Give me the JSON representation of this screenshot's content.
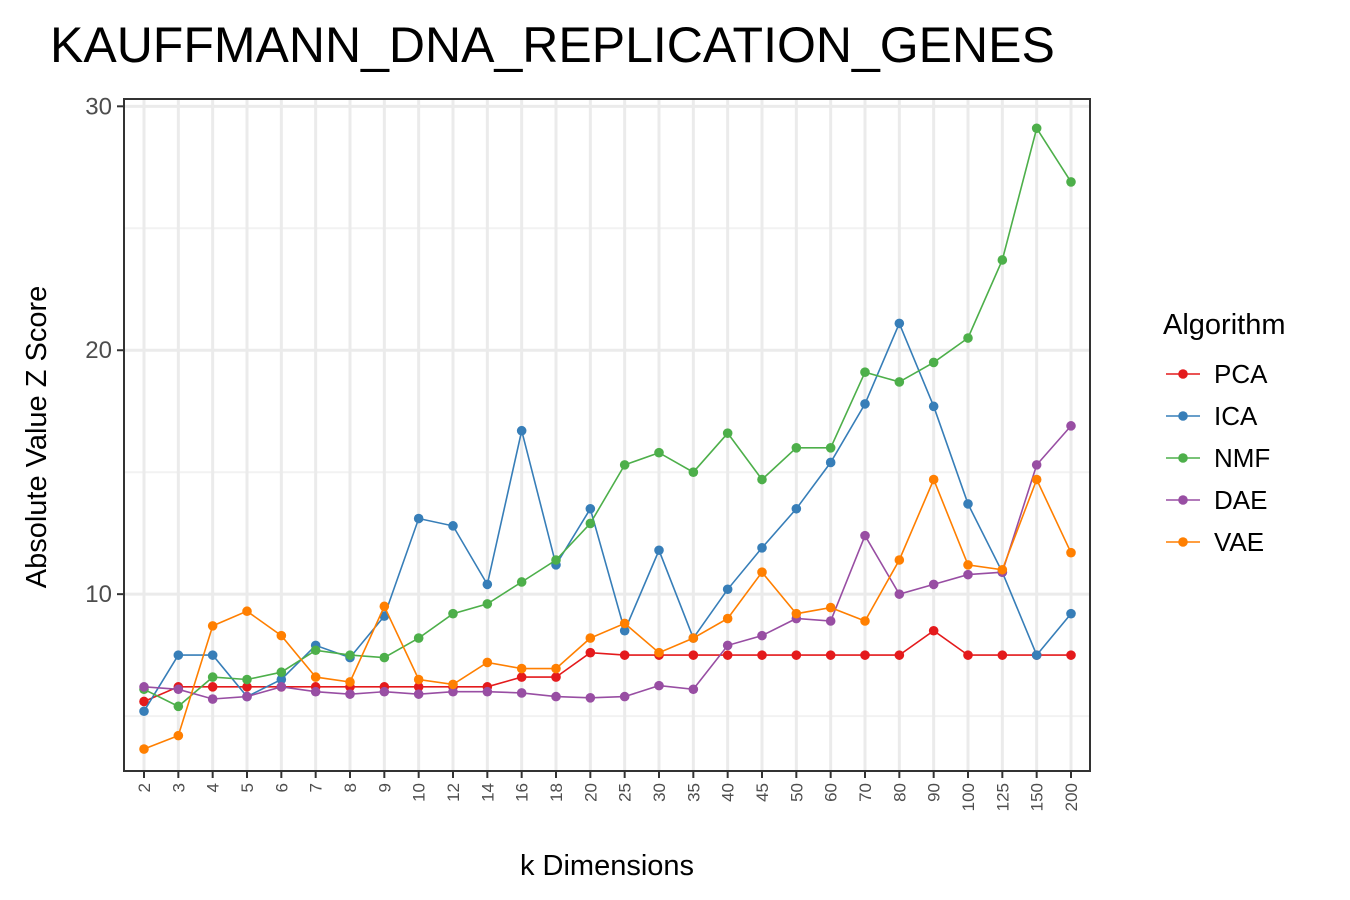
{
  "chart_data": {
    "type": "line",
    "title": "KAUFFMANN_DNA_REPLICATION_GENES",
    "xlabel": "k Dimensions",
    "ylabel": "Absolute Value Z Score",
    "categories": [
      "2",
      "3",
      "4",
      "5",
      "6",
      "7",
      "8",
      "9",
      "10",
      "12",
      "14",
      "16",
      "18",
      "20",
      "25",
      "30",
      "35",
      "40",
      "45",
      "50",
      "60",
      "70",
      "80",
      "90",
      "100",
      "125",
      "150",
      "200"
    ],
    "ylim": [
      2.75,
      30.3
    ],
    "yticks": [
      10,
      20,
      30
    ],
    "grid": true,
    "legend": {
      "title": "Algorithm",
      "placement": "right"
    },
    "series": [
      {
        "name": "PCA",
        "color": "#E41A1C",
        "values": [
          5.6,
          6.2,
          6.2,
          6.2,
          6.2,
          6.2,
          6.2,
          6.2,
          6.2,
          6.2,
          6.2,
          6.6,
          6.6,
          7.6,
          7.5,
          7.5,
          7.5,
          7.5,
          7.5,
          7.5,
          7.5,
          7.5,
          7.5,
          8.5,
          7.5,
          7.5,
          7.5,
          7.5
        ]
      },
      {
        "name": "ICA",
        "color": "#377EB8",
        "values": [
          5.2,
          7.5,
          7.5,
          5.8,
          6.5,
          7.9,
          7.4,
          9.1,
          13.1,
          12.8,
          10.4,
          16.7,
          11.2,
          13.5,
          8.5,
          11.8,
          8.2,
          10.2,
          11.9,
          13.5,
          15.4,
          17.8,
          21.1,
          17.7,
          13.7,
          10.9,
          7.5,
          9.2
        ]
      },
      {
        "name": "NMF",
        "color": "#4DAF4A",
        "values": [
          6.1,
          5.4,
          6.6,
          6.5,
          6.8,
          7.7,
          7.5,
          7.4,
          8.2,
          9.2,
          9.6,
          10.5,
          11.4,
          12.9,
          15.3,
          15.8,
          15.0,
          16.6,
          14.7,
          16.0,
          16.0,
          19.1,
          18.7,
          19.5,
          20.5,
          23.7,
          29.1,
          26.9
        ]
      },
      {
        "name": "DAE",
        "color": "#984EA3",
        "values": [
          6.2,
          6.1,
          5.7,
          5.8,
          6.2,
          6.0,
          5.9,
          6.0,
          5.9,
          6.0,
          6.0,
          5.95,
          5.8,
          5.75,
          5.8,
          6.25,
          6.1,
          7.9,
          8.3,
          9.0,
          8.9,
          12.4,
          10.0,
          10.4,
          10.8,
          10.9,
          15.3,
          16.9
        ]
      },
      {
        "name": "VAE",
        "color": "#FF7F00",
        "values": [
          3.65,
          4.2,
          8.7,
          9.3,
          8.3,
          6.6,
          6.4,
          9.5,
          6.5,
          6.3,
          7.2,
          6.95,
          6.95,
          8.2,
          8.8,
          7.6,
          8.2,
          9.0,
          10.9,
          9.2,
          9.45,
          8.9,
          11.4,
          14.7,
          11.2,
          11.0,
          14.7,
          11.7
        ]
      }
    ]
  }
}
